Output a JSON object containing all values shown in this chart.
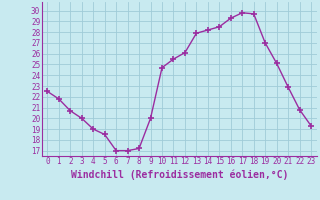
{
  "hours": [
    0,
    1,
    2,
    3,
    4,
    5,
    6,
    7,
    8,
    9,
    10,
    11,
    12,
    13,
    14,
    15,
    16,
    17,
    18,
    19,
    20,
    21,
    22,
    23
  ],
  "values": [
    22.5,
    21.8,
    20.7,
    20.0,
    19.0,
    18.5,
    17.0,
    17.0,
    17.2,
    20.0,
    24.7,
    25.5,
    26.1,
    27.9,
    28.2,
    28.5,
    29.3,
    29.8,
    29.7,
    27.0,
    25.1,
    22.9,
    20.8,
    19.3
  ],
  "line_color": "#9b2da0",
  "marker": "+",
  "marker_size": 4,
  "marker_color": "#9b2da0",
  "background_color": "#c8eaf0",
  "grid_color": "#a0ccd8",
  "xlabel": "Windchill (Refroidissement éolien,°C)",
  "xlim": [
    -0.5,
    23.5
  ],
  "ylim": [
    16.5,
    30.8
  ],
  "yticks": [
    17,
    18,
    19,
    20,
    21,
    22,
    23,
    24,
    25,
    26,
    27,
    28,
    29,
    30
  ],
  "xticks": [
    0,
    1,
    2,
    3,
    4,
    5,
    6,
    7,
    8,
    9,
    10,
    11,
    12,
    13,
    14,
    15,
    16,
    17,
    18,
    19,
    20,
    21,
    22,
    23
  ],
  "tick_color": "#9b2da0",
  "label_color": "#9b2da0",
  "tick_fontsize": 5.5,
  "xlabel_fontsize": 7.0,
  "spine_color": "#9b2da0"
}
